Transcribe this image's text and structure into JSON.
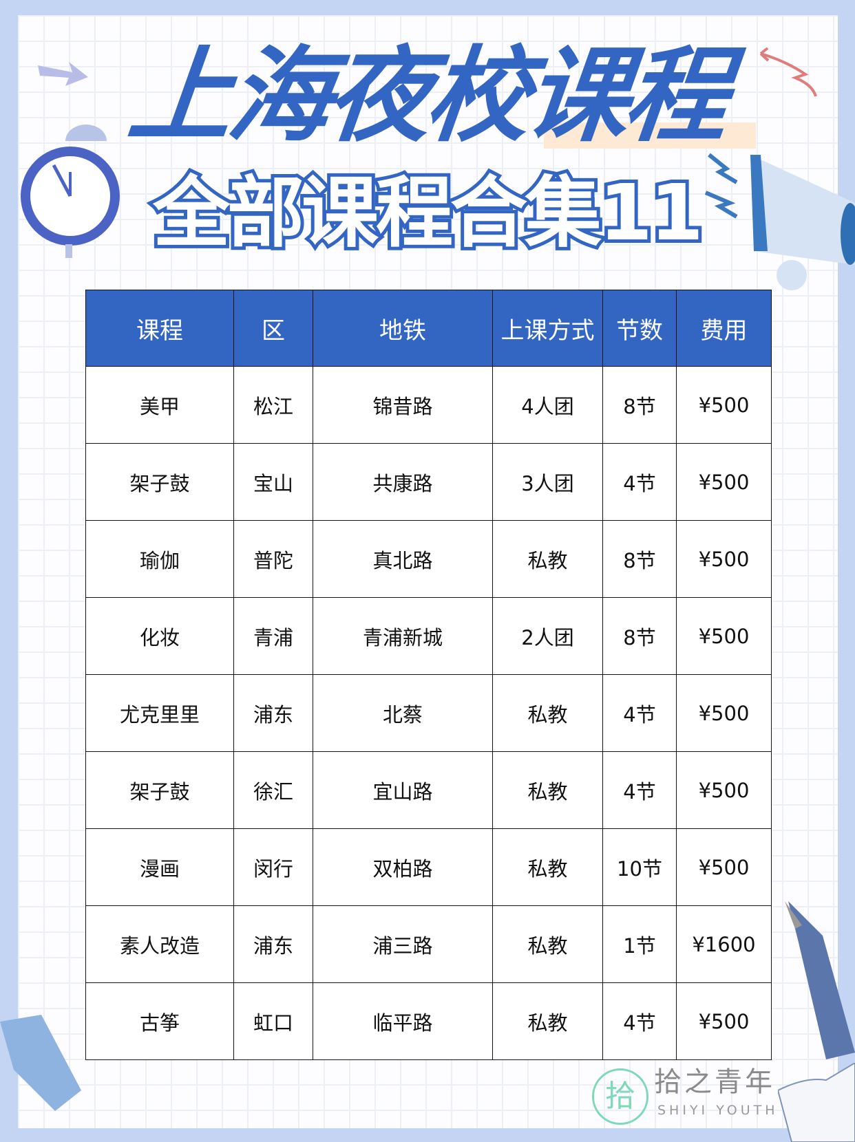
{
  "title": "上海夜校课程",
  "subtitle": "全部课程合集11",
  "colors": {
    "accent": "#3366c3",
    "frame": "#c3d5f2",
    "highlight": "#fde9d4"
  },
  "table": {
    "headers": [
      "课程",
      "区",
      "地铁",
      "上课方式",
      "节数",
      "费用"
    ],
    "rows": [
      [
        "美甲",
        "松江",
        "锦昔路",
        "4人团",
        "8节",
        "¥500"
      ],
      [
        "架子鼓",
        "宝山",
        "共康路",
        "3人团",
        "4节",
        "¥500"
      ],
      [
        "瑜伽",
        "普陀",
        "真北路",
        "私教",
        "8节",
        "¥500"
      ],
      [
        "化妆",
        "青浦",
        "青浦新城",
        "2人团",
        "8节",
        "¥500"
      ],
      [
        "尤克里里",
        "浦东",
        "北蔡",
        "私教",
        "4节",
        "¥500"
      ],
      [
        "架子鼓",
        "徐汇",
        "宜山路",
        "私教",
        "4节",
        "¥500"
      ],
      [
        "漫画",
        "闵行",
        "双柏路",
        "私教",
        "10节",
        "¥500"
      ],
      [
        "素人改造",
        "浦东",
        "浦三路",
        "私教",
        "1节",
        "¥1600"
      ],
      [
        "古筝",
        "虹口",
        "临平路",
        "私教",
        "4节",
        "¥500"
      ]
    ]
  },
  "watermark": {
    "logo_char": "拾",
    "name": "拾之青年",
    "name_en": "SHIYI YOUTH"
  },
  "icons": [
    "alarm-clock-icon",
    "megaphone-icon",
    "arrow-icon",
    "fountain-pen-icon",
    "book-icon",
    "open-notebook-icon",
    "lightning-icon"
  ]
}
